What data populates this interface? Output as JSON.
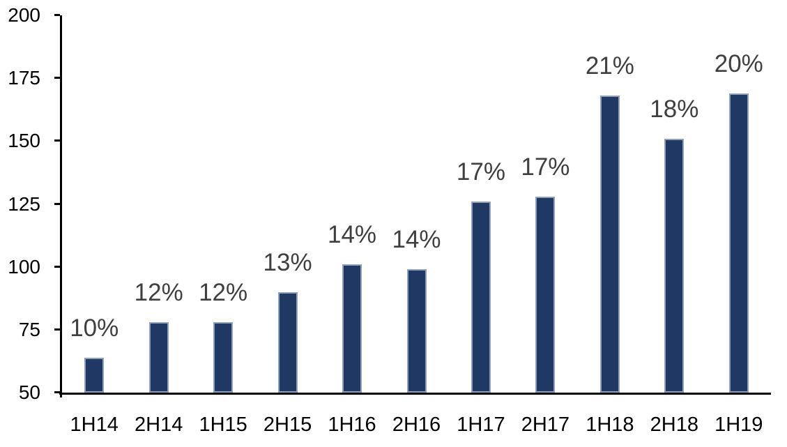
{
  "chart_data": {
    "type": "bar",
    "title": "",
    "xlabel": "",
    "ylabel": "",
    "categories": [
      "1H14",
      "2H14",
      "1H15",
      "2H15",
      "1H16",
      "2H16",
      "1H17",
      "2H17",
      "1H18",
      "2H18",
      "1H19"
    ],
    "values": [
      64,
      78,
      78,
      90,
      101,
      99,
      126,
      128,
      168,
      151,
      169
    ],
    "bar_labels": [
      "10%",
      "12%",
      "12%",
      "13%",
      "14%",
      "14%",
      "17%",
      "17%",
      "21%",
      "18%",
      "20%"
    ],
    "ylim": [
      50,
      200
    ],
    "yticks": [
      50,
      75,
      100,
      125,
      150,
      175,
      200
    ],
    "grid": false,
    "legend_position": "none",
    "colors": {
      "bar_fill": "#1F3864",
      "bar_border": "#8FA0BC",
      "data_label": "#3F3F3F",
      "axis_text": "#000000",
      "axis_line": "#000000",
      "background": "#FFFFFF"
    }
  }
}
